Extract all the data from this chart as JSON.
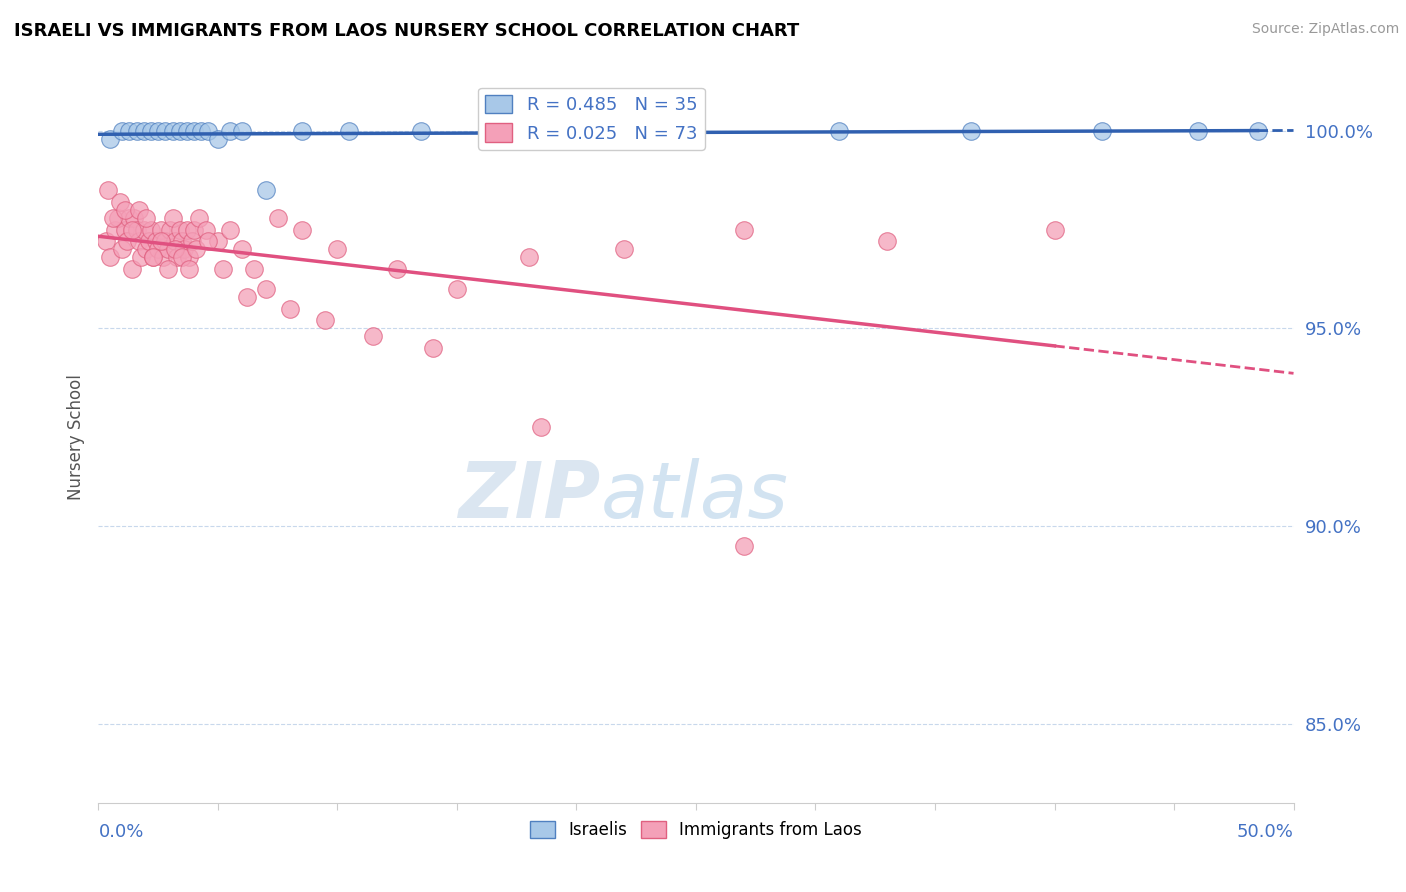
{
  "title": "ISRAELI VS IMMIGRANTS FROM LAOS NURSERY SCHOOL CORRELATION CHART",
  "source": "Source: ZipAtlas.com",
  "ylabel": "Nursery School",
  "x_min": 0.0,
  "x_max": 50.0,
  "y_min": 83.0,
  "y_max": 101.5,
  "y_ticks": [
    85.0,
    90.0,
    95.0,
    100.0
  ],
  "y_tick_labels": [
    "85.0%",
    "90.0%",
    "95.0%",
    "100.0%"
  ],
  "legend_R_blue": "R = 0.485",
  "legend_N_blue": "N = 35",
  "legend_R_pink": "R = 0.025",
  "legend_N_pink": "N = 73",
  "blue_color": "#a8c8e8",
  "pink_color": "#f4a0b8",
  "blue_edge_color": "#5080c0",
  "pink_edge_color": "#e06080",
  "blue_line_color": "#3060b0",
  "pink_line_color": "#e05080",
  "watermark_zip": "ZIP",
  "watermark_atlas": "atlas",
  "israelis_x": [
    0.5,
    1.0,
    1.3,
    1.6,
    1.9,
    2.2,
    2.5,
    2.8,
    3.1,
    3.4,
    3.7,
    4.0,
    4.3,
    4.6,
    5.0,
    5.5,
    6.0,
    7.0,
    8.5,
    10.5,
    13.5,
    18.5,
    25.0,
    31.0,
    36.5,
    42.0,
    46.0,
    48.5
  ],
  "israelis_y": [
    99.8,
    100.0,
    100.0,
    100.0,
    100.0,
    100.0,
    100.0,
    100.0,
    100.0,
    100.0,
    100.0,
    100.0,
    100.0,
    100.0,
    99.8,
    100.0,
    100.0,
    98.5,
    100.0,
    100.0,
    100.0,
    100.0,
    100.0,
    100.0,
    100.0,
    100.0,
    100.0,
    100.0
  ],
  "laos_x": [
    0.3,
    0.5,
    0.7,
    0.8,
    1.0,
    1.1,
    1.2,
    1.3,
    1.4,
    1.5,
    1.6,
    1.7,
    1.8,
    1.9,
    2.0,
    2.1,
    2.2,
    2.3,
    2.4,
    2.5,
    2.6,
    2.7,
    2.8,
    2.9,
    3.0,
    3.1,
    3.2,
    3.3,
    3.4,
    3.5,
    3.6,
    3.7,
    3.8,
    3.9,
    4.0,
    4.2,
    4.5,
    5.0,
    5.5,
    6.0,
    6.5,
    7.5,
    8.5,
    10.0,
    12.5,
    15.0,
    18.0,
    22.0,
    27.0,
    33.0,
    40.0
  ],
  "laos_y": [
    97.2,
    96.8,
    97.5,
    97.8,
    97.0,
    97.5,
    97.2,
    97.8,
    96.5,
    97.8,
    97.5,
    97.2,
    96.8,
    97.5,
    97.0,
    97.2,
    97.5,
    96.8,
    97.2,
    97.0,
    97.5,
    96.8,
    97.2,
    97.0,
    97.5,
    97.8,
    97.2,
    96.8,
    97.5,
    97.2,
    97.0,
    97.5,
    96.8,
    97.2,
    97.5,
    97.8,
    97.5,
    97.2,
    97.5,
    97.0,
    96.5,
    97.8,
    97.5,
    97.0,
    96.5,
    96.0,
    96.8,
    97.0,
    97.5,
    97.2,
    97.5
  ],
  "laos_x_scattered": [
    0.4,
    0.6,
    0.9,
    1.1,
    1.4,
    1.7,
    2.0,
    2.3,
    2.6,
    2.9,
    3.2,
    3.5,
    3.8,
    4.1,
    4.6,
    5.2,
    6.2,
    7.0,
    8.0,
    9.5,
    11.5,
    14.0,
    18.5,
    27.0
  ],
  "laos_y_scattered": [
    98.5,
    97.8,
    98.2,
    98.0,
    97.5,
    98.0,
    97.8,
    96.8,
    97.2,
    96.5,
    97.0,
    96.8,
    96.5,
    97.0,
    97.2,
    96.5,
    95.8,
    96.0,
    95.5,
    95.2,
    94.8,
    94.5,
    92.5,
    89.5
  ]
}
